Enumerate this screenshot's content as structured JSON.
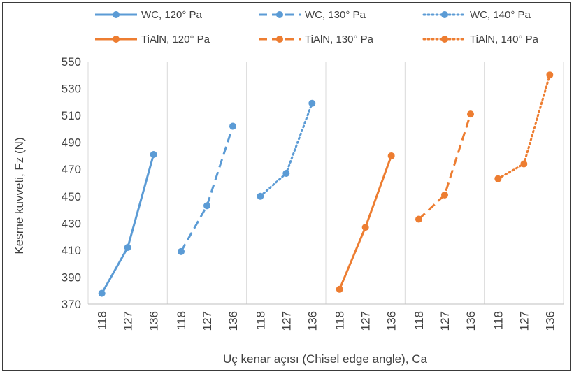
{
  "chart_data": {
    "type": "line",
    "title": "",
    "xlabel": "Uç kenar açısı (Chisel edge angle), Ca",
    "ylabel": "Kesme kuvveti, Fz (N)",
    "ylim": [
      370,
      550
    ],
    "ytick_step": 20,
    "grid": "vertical",
    "legend_position": "top",
    "categories": [
      "118",
      "127",
      "136"
    ],
    "series": [
      {
        "name": "WC, 120° Pa",
        "values": [
          378,
          412,
          481
        ],
        "color": "#5B9BD5",
        "dash": "solid"
      },
      {
        "name": "WC, 130° Pa",
        "values": [
          409,
          443,
          502
        ],
        "color": "#5B9BD5",
        "dash": "dashed"
      },
      {
        "name": "WC, 140° Pa",
        "values": [
          450,
          467,
          519
        ],
        "color": "#5B9BD5",
        "dash": "dotted"
      },
      {
        "name": "TiAlN, 120° Pa",
        "values": [
          381,
          427,
          480
        ],
        "color": "#ED7D31",
        "dash": "solid"
      },
      {
        "name": "TiAlN, 130° Pa",
        "values": [
          433,
          451,
          511
        ],
        "color": "#ED7D31",
        "dash": "dashed"
      },
      {
        "name": "TiAlN, 140° Pa",
        "values": [
          463,
          474,
          540
        ],
        "color": "#ED7D31",
        "dash": "dotted"
      }
    ]
  }
}
